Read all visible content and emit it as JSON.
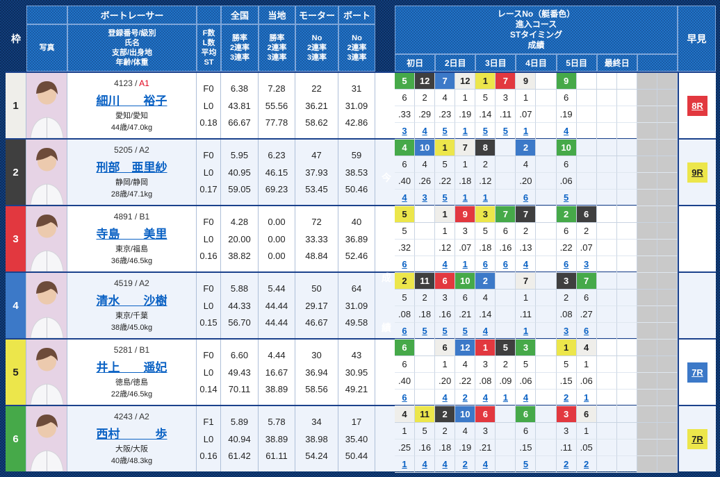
{
  "header": {
    "waku": "枠",
    "photo": "写真",
    "racer": "ボートレーサー",
    "racer_sub": [
      "登録番号/級別",
      "氏名",
      "支部/出身地",
      "年齢/体重"
    ],
    "fl": [
      "F数",
      "L数",
      "平均ST"
    ],
    "stats": [
      {
        "title": "全国",
        "sub": [
          "勝率",
          "2連率",
          "3連率"
        ]
      },
      {
        "title": "当地",
        "sub": [
          "勝率",
          "2連率",
          "3連率"
        ]
      },
      {
        "title": "モーター",
        "sub": [
          "No",
          "2連率",
          "3連率"
        ]
      },
      {
        "title": "ボート",
        "sub": [
          "No",
          "2連率",
          "3連率"
        ]
      }
    ],
    "right_title": [
      "レースNo（艇番色）",
      "進入コース",
      "STタイミング",
      "成績"
    ],
    "days": [
      "初日",
      "2日目",
      "3日目",
      "4日目",
      "5日目",
      "最終日",
      ""
    ],
    "hayami": "早見",
    "mid_band": "今節成績"
  },
  "boat_colors": {
    "1": {
      "bg": "#efeeea",
      "fg": "#222222"
    },
    "2": {
      "bg": "#3f3f3f",
      "fg": "#ffffff"
    },
    "3": {
      "bg": "#e2383f",
      "fg": "#ffffff"
    },
    "4": {
      "bg": "#3c79c8",
      "fg": "#ffffff"
    },
    "5": {
      "bg": "#ece64b",
      "fg": "#222222"
    },
    "6": {
      "bg": "#46a949",
      "fg": "#ffffff"
    }
  },
  "class_colors": {
    "A1": "#e1001a",
    "default": "#333333"
  },
  "disabled_color": "#c9c9c9",
  "racers": [
    {
      "waku": "1",
      "lane": 1,
      "reg": "4123",
      "class": "A1",
      "name": "細川　　裕子",
      "branch": "愛知/愛知",
      "age": "44歳/47.0kg",
      "fl": [
        "F0",
        "L0",
        "0.18"
      ],
      "national": [
        "6.38",
        "43.81",
        "66.67"
      ],
      "local": [
        "7.28",
        "55.56",
        "77.78"
      ],
      "motor": [
        "22",
        "36.21",
        "58.62"
      ],
      "boat": [
        "31",
        "31.09",
        "42.86"
      ],
      "race_no": [
        {
          "no": "5",
          "lane": 6
        },
        {
          "no": "12",
          "lane": 2
        },
        {
          "no": "7",
          "lane": 4
        },
        {
          "no": "12",
          "lane": 1
        },
        {
          "no": "1",
          "lane": 5
        },
        {
          "no": "7",
          "lane": 3
        },
        {
          "no": "9",
          "lane": 1
        },
        null,
        {
          "no": "9",
          "lane": 6
        },
        null,
        null,
        null,
        null,
        null
      ],
      "course": [
        "6",
        "2",
        "4",
        "1",
        "5",
        "3",
        "1",
        "",
        "6",
        "",
        "",
        "",
        "",
        ""
      ],
      "st": [
        ".33",
        ".29",
        ".23",
        ".19",
        ".14",
        ".11",
        ".07",
        "",
        ".19",
        "",
        "",
        "",
        "",
        ""
      ],
      "result": [
        "3",
        "4",
        "5",
        "1",
        "5",
        "5",
        "1",
        "",
        "4",
        "",
        "",
        "",
        "",
        ""
      ],
      "hayami": {
        "label": "8R",
        "lane": 3
      }
    },
    {
      "waku": "2",
      "lane": 2,
      "reg": "5205",
      "class": "A2",
      "name": "刑部　亜里紗",
      "branch": "静岡/静岡",
      "age": "28歳/47.1kg",
      "fl": [
        "F0",
        "L0",
        "0.17"
      ],
      "national": [
        "5.95",
        "40.95",
        "59.05"
      ],
      "local": [
        "6.23",
        "46.15",
        "69.23"
      ],
      "motor": [
        "47",
        "37.93",
        "53.45"
      ],
      "boat": [
        "59",
        "38.53",
        "50.46"
      ],
      "race_no": [
        {
          "no": "4",
          "lane": 6
        },
        {
          "no": "10",
          "lane": 4
        },
        {
          "no": "1",
          "lane": 5
        },
        {
          "no": "7",
          "lane": 1
        },
        {
          "no": "8",
          "lane": 2
        },
        null,
        {
          "no": "2",
          "lane": 4
        },
        null,
        {
          "no": "10",
          "lane": 6
        },
        null,
        null,
        null,
        null,
        null
      ],
      "course": [
        "6",
        "4",
        "5",
        "1",
        "2",
        "",
        "4",
        "",
        "6",
        "",
        "",
        "",
        "",
        ""
      ],
      "st": [
        ".40",
        ".26",
        ".22",
        ".18",
        ".12",
        "",
        ".20",
        "",
        ".06",
        "",
        "",
        "",
        "",
        ""
      ],
      "result": [
        "4",
        "3",
        "5",
        "1",
        "1",
        "",
        "6",
        "",
        "5",
        "",
        "",
        "",
        "",
        ""
      ],
      "hayami": {
        "label": "9R",
        "lane": 5
      }
    },
    {
      "waku": "3",
      "lane": 3,
      "reg": "4891",
      "class": "B1",
      "name": "寺島　　美里",
      "branch": "東京/福島",
      "age": "36歳/46.5kg",
      "fl": [
        "F0",
        "L0",
        "0.16"
      ],
      "national": [
        "4.28",
        "20.00",
        "38.82"
      ],
      "local": [
        "0.00",
        "0.00",
        "0.00"
      ],
      "motor": [
        "72",
        "33.33",
        "48.84"
      ],
      "boat": [
        "40",
        "36.89",
        "52.46"
      ],
      "race_no": [
        {
          "no": "5",
          "lane": 5
        },
        null,
        {
          "no": "1",
          "lane": 1
        },
        {
          "no": "9",
          "lane": 3
        },
        {
          "no": "3",
          "lane": 5
        },
        {
          "no": "7",
          "lane": 6
        },
        {
          "no": "7",
          "lane": 2
        },
        null,
        {
          "no": "2",
          "lane": 6
        },
        {
          "no": "6",
          "lane": 2
        },
        null,
        null,
        null,
        null
      ],
      "course": [
        "5",
        "",
        "1",
        "3",
        "5",
        "6",
        "2",
        "",
        "6",
        "2",
        "",
        "",
        "",
        ""
      ],
      "st": [
        ".32",
        "",
        ".12",
        ".07",
        ".18",
        ".16",
        ".13",
        "",
        ".22",
        ".07",
        "",
        "",
        "",
        ""
      ],
      "result": [
        "6",
        "",
        "4",
        "1",
        "6",
        "6",
        "4",
        "",
        "6",
        "3",
        "",
        "",
        "",
        ""
      ],
      "hayami": null
    },
    {
      "waku": "4",
      "lane": 4,
      "reg": "4519",
      "class": "A2",
      "name": "清水　　沙樹",
      "branch": "東京/千葉",
      "age": "38歳/45.0kg",
      "fl": [
        "F0",
        "L0",
        "0.15"
      ],
      "national": [
        "5.88",
        "44.33",
        "56.70"
      ],
      "local": [
        "5.44",
        "44.44",
        "44.44"
      ],
      "motor": [
        "50",
        "29.17",
        "46.67"
      ],
      "boat": [
        "64",
        "31.09",
        "49.58"
      ],
      "race_no": [
        {
          "no": "2",
          "lane": 5
        },
        {
          "no": "11",
          "lane": 2
        },
        {
          "no": "6",
          "lane": 3
        },
        {
          "no": "10",
          "lane": 6
        },
        {
          "no": "2",
          "lane": 4
        },
        null,
        {
          "no": "7",
          "lane": 1
        },
        null,
        {
          "no": "3",
          "lane": 2
        },
        {
          "no": "7",
          "lane": 6
        },
        null,
        null,
        null,
        null
      ],
      "course": [
        "5",
        "2",
        "3",
        "6",
        "4",
        "",
        "1",
        "",
        "2",
        "6",
        "",
        "",
        "",
        ""
      ],
      "st": [
        ".08",
        ".18",
        ".16",
        ".21",
        ".14",
        "",
        ".11",
        "",
        ".08",
        ".27",
        "",
        "",
        "",
        ""
      ],
      "result": [
        "6",
        "5",
        "5",
        "5",
        "4",
        "",
        "1",
        "",
        "3",
        "6",
        "",
        "",
        "",
        ""
      ],
      "hayami": null
    },
    {
      "waku": "5",
      "lane": 5,
      "reg": "5281",
      "class": "B1",
      "name": "井上　　遥妃",
      "branch": "徳島/徳島",
      "age": "22歳/46.5kg",
      "fl": [
        "F0",
        "L0",
        "0.14"
      ],
      "national": [
        "6.60",
        "49.43",
        "70.11"
      ],
      "local": [
        "4.44",
        "16.67",
        "38.89"
      ],
      "motor": [
        "30",
        "36.94",
        "58.56"
      ],
      "boat": [
        "43",
        "30.95",
        "49.21"
      ],
      "race_no": [
        {
          "no": "6",
          "lane": 6
        },
        null,
        {
          "no": "6",
          "lane": 1
        },
        {
          "no": "12",
          "lane": 4
        },
        {
          "no": "1",
          "lane": 3
        },
        {
          "no": "5",
          "lane": 2
        },
        {
          "no": "3",
          "lane": 6
        },
        null,
        {
          "no": "1",
          "lane": 5
        },
        {
          "no": "4",
          "lane": 1
        },
        null,
        null,
        null,
        null
      ],
      "course": [
        "6",
        "",
        "1",
        "4",
        "3",
        "2",
        "5",
        "",
        "5",
        "1",
        "",
        "",
        "",
        ""
      ],
      "st": [
        ".40",
        "",
        ".20",
        ".22",
        ".08",
        ".09",
        ".06",
        "",
        ".15",
        ".06",
        "",
        "",
        "",
        ""
      ],
      "result": [
        "6",
        "",
        "4",
        "2",
        "4",
        "1",
        "4",
        "",
        "2",
        "1",
        "",
        "",
        "",
        ""
      ],
      "hayami": {
        "label": "7R",
        "lane": 4
      }
    },
    {
      "waku": "6",
      "lane": 6,
      "reg": "4243",
      "class": "A2",
      "name": "西村　　　歩",
      "branch": "大阪/大阪",
      "age": "40歳/48.3kg",
      "fl": [
        "F1",
        "L0",
        "0.16"
      ],
      "national": [
        "5.89",
        "40.94",
        "61.42"
      ],
      "local": [
        "5.78",
        "38.89",
        "61.11"
      ],
      "motor": [
        "34",
        "38.98",
        "54.24"
      ],
      "boat": [
        "17",
        "35.40",
        "50.44"
      ],
      "race_no": [
        {
          "no": "4",
          "lane": 1
        },
        {
          "no": "11",
          "lane": 5
        },
        {
          "no": "2",
          "lane": 2
        },
        {
          "no": "10",
          "lane": 4
        },
        {
          "no": "6",
          "lane": 3
        },
        null,
        {
          "no": "6",
          "lane": 6
        },
        null,
        {
          "no": "3",
          "lane": 3
        },
        {
          "no": "6",
          "lane": 1
        },
        null,
        null,
        null,
        null
      ],
      "course": [
        "1",
        "5",
        "2",
        "4",
        "3",
        "",
        "6",
        "",
        "3",
        "1",
        "",
        "",
        "",
        ""
      ],
      "st": [
        ".25",
        ".16",
        ".18",
        ".19",
        ".21",
        "",
        ".15",
        "",
        ".11",
        ".05",
        "",
        "",
        "",
        ""
      ],
      "result": [
        "1",
        "4",
        "4",
        "2",
        "4",
        "",
        "5",
        "",
        "2",
        "2",
        "",
        "",
        "",
        ""
      ],
      "hayami": {
        "label": "7R",
        "lane": 5
      }
    }
  ]
}
